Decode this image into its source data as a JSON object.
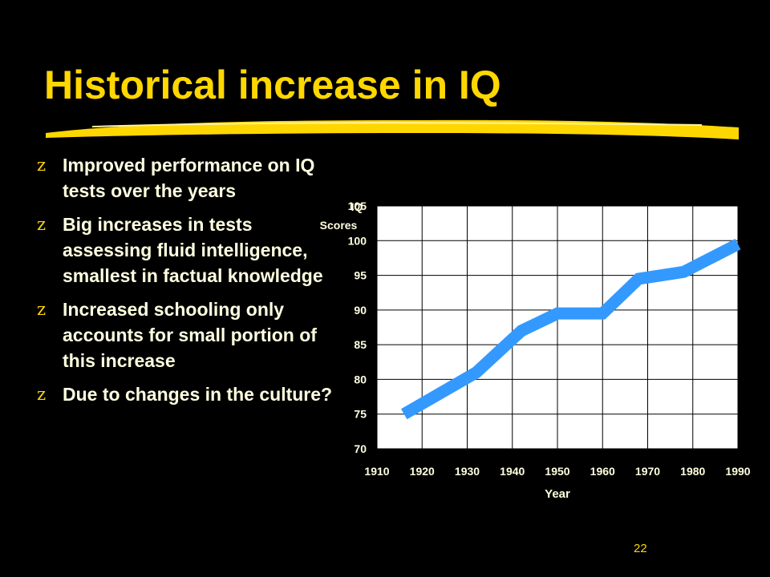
{
  "colors": {
    "background": "#000000",
    "title": "#FFD700",
    "text": "#FFFFE0",
    "accent": "#FFD700",
    "slide_number": "#FFD700",
    "plot_background": "#FFFFFF",
    "grid": "#000000",
    "line": "#3399FF"
  },
  "slide": {
    "title": "Historical increase in IQ",
    "bullet_marker": "z",
    "bullets": [
      {
        "text": "Improved performance on IQ tests over the years"
      },
      {
        "text": "Big increases in tests assessing fluid intelligence, smallest in factual knowledge"
      },
      {
        "text": "Increased schooling only accounts for small portion of this increase"
      },
      {
        "text": "Due to changes in the culture?"
      }
    ],
    "slide_number": "22"
  },
  "chart_data": {
    "type": "line",
    "title": "",
    "xlabel": "Year",
    "ylabel": "IQ Scores",
    "ylabel_lines": [
      "IQ",
      "Scores"
    ],
    "xlim": [
      1910,
      1990
    ],
    "ylim": [
      70,
      105
    ],
    "x_ticks": [
      1910,
      1920,
      1930,
      1940,
      1950,
      1960,
      1970,
      1980,
      1990
    ],
    "y_ticks": [
      70,
      75,
      80,
      85,
      90,
      95,
      100,
      105
    ],
    "grid": true,
    "legend": "none",
    "series": [
      {
        "x": [
          1916,
          1932,
          1942,
          1950,
          1960,
          1968,
          1978,
          1990
        ],
        "values": [
          75,
          81,
          87,
          89.5,
          89.5,
          94.5,
          95.5,
          99.5
        ]
      }
    ]
  }
}
